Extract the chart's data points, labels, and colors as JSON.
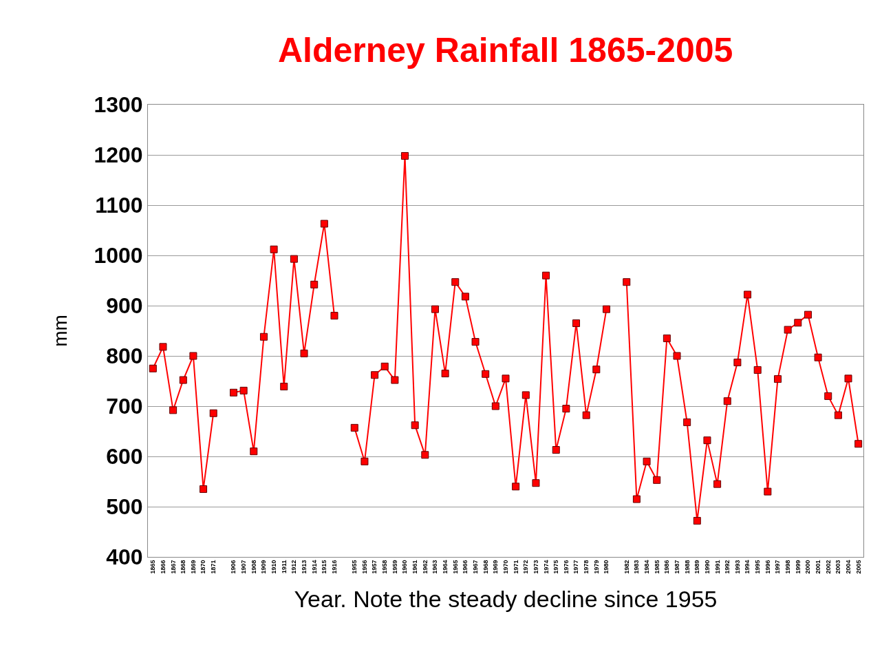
{
  "chart_data": {
    "type": "line",
    "title": "Alderney Rainfall 1865-2005",
    "xlabel": "Year. Note the steady decline since 1955",
    "ylabel": "mm",
    "categories": [
      "1865",
      "1866",
      "1867",
      "1868",
      "1869",
      "1870",
      "1871",
      null,
      "1906",
      "1907",
      "1908",
      "1909",
      "1910",
      "1911",
      "1912",
      "1913",
      "1914",
      "1915",
      "1916",
      null,
      "1955",
      "1956",
      "1957",
      "1958",
      "1959",
      "1960",
      "1961",
      "1962",
      "1963",
      "1964",
      "1965",
      "1966",
      "1967",
      "1968",
      "1969",
      "1970",
      "1971",
      "1972",
      "1973",
      "1974",
      "1975",
      "1976",
      "1977",
      "1978",
      "1979",
      "1980",
      null,
      "1982",
      "1983",
      "1984",
      "1985",
      "1986",
      "1987",
      "1988",
      "1989",
      "1990",
      "1991",
      "1992",
      "1993",
      "1994",
      "1995",
      "1996",
      "1997",
      "1998",
      "1999",
      "2000",
      "2001",
      "2002",
      "2003",
      "2004",
      "2005"
    ],
    "series": [
      {
        "color": "#ff0000",
        "values": [
          775,
          818,
          692,
          752,
          800,
          535,
          686,
          null,
          727,
          731,
          610,
          838,
          1012,
          739,
          993,
          805,
          942,
          1063,
          880,
          null,
          657,
          590,
          762,
          779,
          752,
          1198,
          662,
          603,
          893,
          765,
          947,
          918,
          828,
          764,
          700,
          755,
          540,
          722,
          547,
          960,
          613,
          695,
          865,
          682,
          773,
          893,
          null,
          947,
          515,
          590,
          553,
          835,
          800,
          668,
          472,
          632,
          545,
          710,
          787,
          922,
          772,
          530,
          754,
          852,
          866,
          882,
          797,
          720,
          682,
          755,
          625
        ]
      }
    ],
    "ylim": [
      400,
      1300
    ],
    "yticks": [
      400,
      500,
      600,
      700,
      800,
      900,
      1000,
      1100,
      1200,
      1300
    ],
    "grid": "y",
    "legend": false,
    "marker": "square",
    "line_style": "solid"
  }
}
